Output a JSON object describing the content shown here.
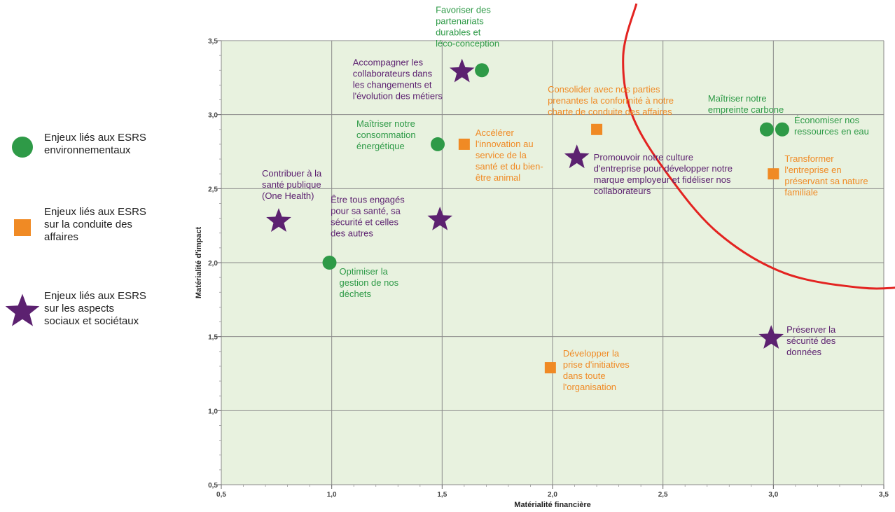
{
  "colors": {
    "environment": "#2e9a47",
    "governance": "#f08a24",
    "social": "#5c2170",
    "curve": "#e32421",
    "plot_bg": "#e8f2df"
  },
  "legend": [
    {
      "category": "environment",
      "marker": "circle",
      "lines": [
        "Enjeux liés aux ESRS",
        "environnementaux"
      ]
    },
    {
      "category": "governance",
      "marker": "square",
      "lines": [
        "Enjeux liés aux ESRS",
        "sur la conduite des",
        "affaires"
      ]
    },
    {
      "category": "social",
      "marker": "star",
      "lines": [
        "Enjeux liés aux ESRS",
        "sur les aspects",
        "sociaux et sociétaux"
      ]
    }
  ],
  "chart_data": {
    "type": "scatter",
    "xlabel": "Matérialité financière",
    "ylabel": "Matérialité d'impact",
    "xlim": [
      0.5,
      3.5
    ],
    "ylim": [
      0.5,
      3.5
    ],
    "xticks": [
      "0,5",
      "1,0",
      "1,5",
      "2,0",
      "2,5",
      "3,0",
      "3,5"
    ],
    "yticks": [
      "0,5",
      "1,0",
      "1,5",
      "2,0",
      "2,5",
      "3,0",
      "3,5"
    ],
    "grid": true,
    "legend_position": "left",
    "points": [
      {
        "category": "environment",
        "x": 1.68,
        "y": 3.3,
        "label_lines": [
          "Favoriser des",
          "partenariats",
          "durables et",
          "léco-conception"
        ]
      },
      {
        "category": "social",
        "x": 1.59,
        "y": 3.29,
        "label_lines": [
          "Accompagner les",
          "collaborateurs dans",
          "les changements et",
          "l'évolution des métiers"
        ]
      },
      {
        "category": "governance",
        "x": 2.2,
        "y": 2.9,
        "label_lines": [
          "Consolider avec nos parties",
          "prenantes la conformité à notre",
          "charte de conduite des affaires"
        ]
      },
      {
        "category": "environment",
        "x": 2.97,
        "y": 2.9,
        "label_lines": [
          "Maîtriser notre",
          "empreinte carbone"
        ]
      },
      {
        "category": "environment",
        "x": 3.04,
        "y": 2.9,
        "label_lines": [
          "Économiser nos",
          "ressources en eau"
        ]
      },
      {
        "category": "environment",
        "x": 1.48,
        "y": 2.8,
        "label_lines": [
          "Maîtriser notre",
          "consommation",
          "énergétique"
        ]
      },
      {
        "category": "governance",
        "x": 1.6,
        "y": 2.8,
        "label_lines": [
          "Accélérer",
          "l'innovation au",
          "service de la",
          "santé et du bien-",
          "être animal"
        ]
      },
      {
        "category": "social",
        "x": 2.11,
        "y": 2.71,
        "label_lines": [
          "Promouvoir notre culture",
          "d'entreprise pour développer notre",
          "marque employeur et fidéliser nos",
          "collaborateurs"
        ]
      },
      {
        "category": "governance",
        "x": 3.0,
        "y": 2.6,
        "label_lines": [
          "Transformer",
          "l'entreprise en",
          "préservant sa nature",
          "familiale"
        ]
      },
      {
        "category": "social",
        "x": 0.76,
        "y": 2.28,
        "label_lines": [
          "Contribuer à la",
          "santé publique",
          "(One Health)"
        ]
      },
      {
        "category": "social",
        "x": 1.49,
        "y": 2.29,
        "label_lines": [
          "Être tous engagés",
          "pour sa santé, sa",
          "sécurité et celles",
          "des autres"
        ]
      },
      {
        "category": "environment",
        "x": 0.99,
        "y": 2.0,
        "label_lines": [
          "Optimiser la",
          "gestion de nos",
          "déchets"
        ]
      },
      {
        "category": "social",
        "x": 2.99,
        "y": 1.49,
        "label_lines": [
          "Préserver la",
          "sécurité des",
          "données"
        ]
      },
      {
        "category": "governance",
        "x": 1.99,
        "y": 1.29,
        "label_lines": [
          "Développer la",
          "prise d'initiatives",
          "dans toute",
          "l'organisation"
        ]
      }
    ],
    "threshold_curve": [
      [
        2.38,
        3.75
      ],
      [
        2.32,
        3.4
      ],
      [
        2.36,
        3.0
      ],
      [
        2.52,
        2.6
      ],
      [
        2.75,
        2.2
      ],
      [
        3.05,
        1.93
      ],
      [
        3.4,
        1.83
      ],
      [
        3.62,
        1.84
      ]
    ]
  }
}
